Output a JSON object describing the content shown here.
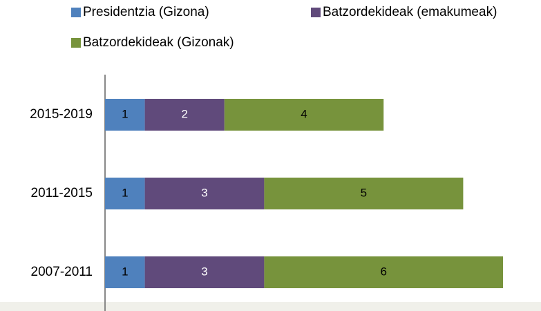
{
  "chart_data": {
    "type": "stacked-bar-horizontal",
    "categories": [
      "2015-2019",
      "2011-2015",
      "2007-2011"
    ],
    "series": [
      {
        "name": "Presidentzia (Gizona)",
        "color": "#4f81bd",
        "values": [
          1,
          1,
          1
        ]
      },
      {
        "name": "Batzordekideak (emakumeak)",
        "color": "#604a7b",
        "values": [
          2,
          3,
          3
        ]
      },
      {
        "name": "Batzordekideak (Gizonak)",
        "color": "#77933c",
        "values": [
          4,
          5,
          6
        ]
      }
    ]
  }
}
